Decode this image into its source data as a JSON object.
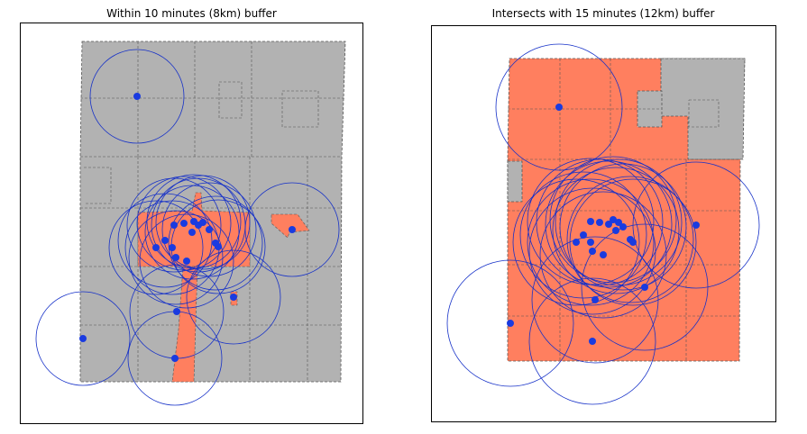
{
  "maps": [
    {
      "title": "Within 10 minutes (8km) buffer",
      "buffer": "10 minutes (8km)",
      "rule": "within",
      "fill_colors": {
        "selected": "#FF7F5F",
        "unselected": "#B2B2B2"
      },
      "buffer_color": "#1530C8",
      "point_color": "#1A3BE0"
    },
    {
      "title": "Intersects with 15 minutes (12km) buffer",
      "buffer": "15 minutes (12km)",
      "rule": "intersects",
      "fill_colors": {
        "selected": "#FF7F5F",
        "unselected": "#B2B2B2"
      },
      "buffer_color": "#1530C8",
      "point_color": "#1A3BE0"
    }
  ]
}
